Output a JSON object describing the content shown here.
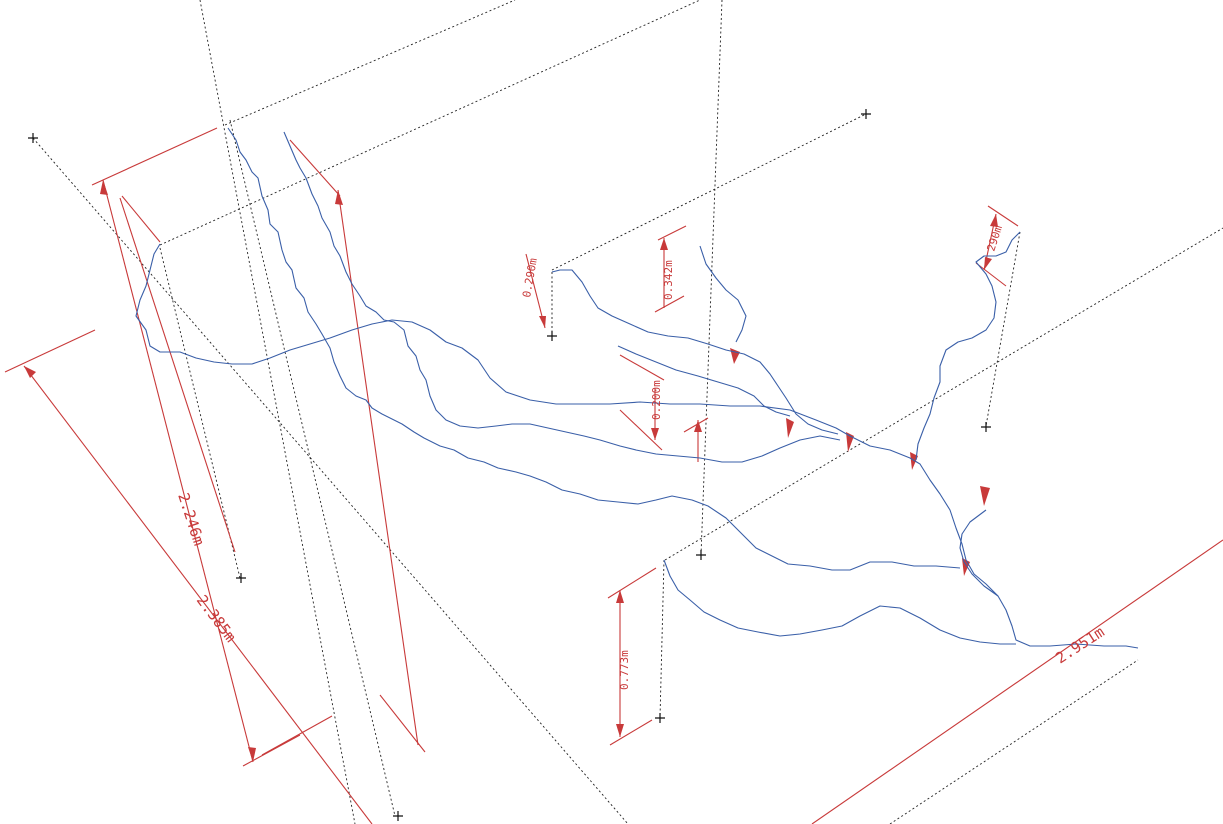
{
  "diagram": {
    "colors": {
      "dimension": "#c83a3a",
      "river": "#3a5fa8",
      "guide": "#222222",
      "background": "#ffffff"
    },
    "dimensions": {
      "long_right": "2.951m",
      "left_outer": "2.385m",
      "left_inner": "2.246m",
      "bottom_vertical": "0.773m",
      "upper_vertical": "0.342m",
      "mid_vertical": "0.200m",
      "right_top": "290m",
      "left_small": "0.290m"
    }
  }
}
